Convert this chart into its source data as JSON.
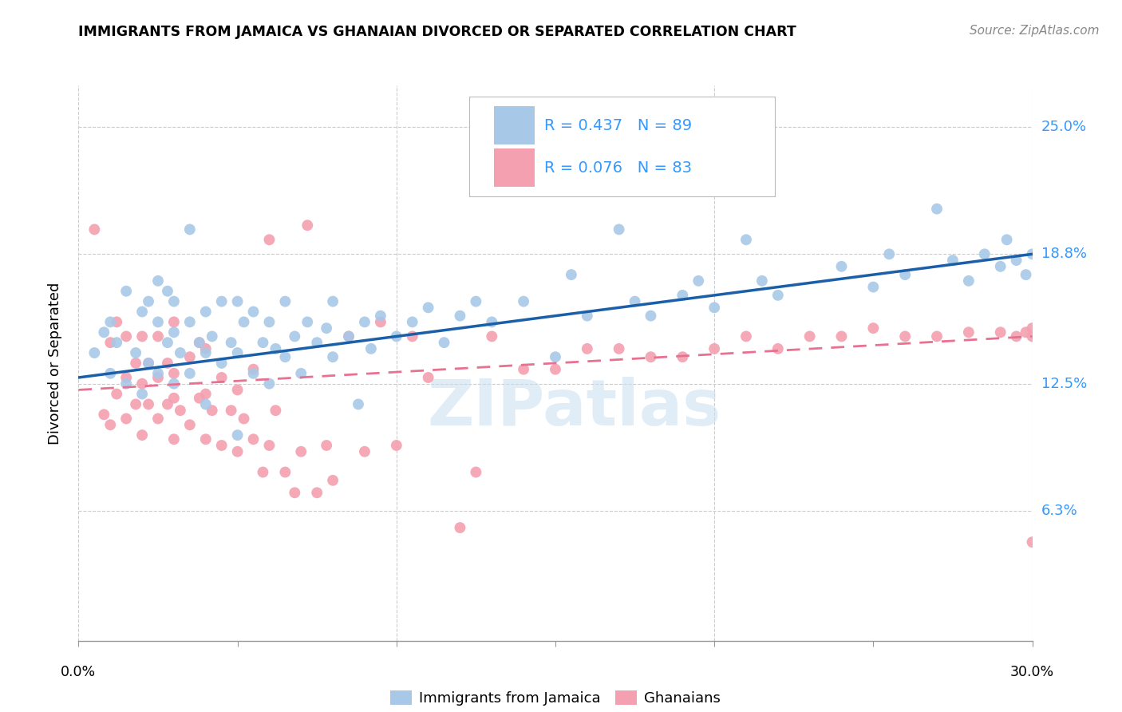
{
  "title": "IMMIGRANTS FROM JAMAICA VS GHANAIAN DIVORCED OR SEPARATED CORRELATION CHART",
  "source": "Source: ZipAtlas.com",
  "ylabel": "Divorced or Separated",
  "y_tick_labels": [
    "6.3%",
    "12.5%",
    "18.8%",
    "25.0%"
  ],
  "y_tick_values": [
    0.063,
    0.125,
    0.188,
    0.25
  ],
  "x_range": [
    0.0,
    0.3
  ],
  "y_range": [
    0.0,
    0.27
  ],
  "legend_label_bottom1": "Immigrants from Jamaica",
  "legend_label_bottom2": "Ghanaians",
  "blue_color": "#a8c8e8",
  "pink_color": "#f4a0b0",
  "line_blue": "#1a5fa8",
  "line_pink": "#e87090",
  "blue_line_start_y": 0.128,
  "blue_line_end_y": 0.188,
  "pink_line_start_y": 0.122,
  "pink_line_end_y": 0.148,
  "blue_scatter_x": [
    0.005,
    0.008,
    0.01,
    0.01,
    0.012,
    0.015,
    0.015,
    0.018,
    0.02,
    0.02,
    0.022,
    0.022,
    0.025,
    0.025,
    0.025,
    0.028,
    0.028,
    0.03,
    0.03,
    0.03,
    0.032,
    0.035,
    0.035,
    0.035,
    0.038,
    0.04,
    0.04,
    0.04,
    0.042,
    0.045,
    0.045,
    0.048,
    0.05,
    0.05,
    0.05,
    0.052,
    0.055,
    0.055,
    0.058,
    0.06,
    0.06,
    0.062,
    0.065,
    0.065,
    0.068,
    0.07,
    0.072,
    0.075,
    0.078,
    0.08,
    0.08,
    0.085,
    0.088,
    0.09,
    0.092,
    0.095,
    0.1,
    0.105,
    0.11,
    0.115,
    0.12,
    0.125,
    0.13,
    0.14,
    0.15,
    0.155,
    0.16,
    0.17,
    0.175,
    0.18,
    0.19,
    0.195,
    0.2,
    0.21,
    0.215,
    0.22,
    0.24,
    0.25,
    0.255,
    0.26,
    0.27,
    0.275,
    0.28,
    0.285,
    0.29,
    0.292,
    0.295,
    0.298,
    0.3
  ],
  "blue_scatter_y": [
    0.14,
    0.15,
    0.13,
    0.155,
    0.145,
    0.125,
    0.17,
    0.14,
    0.12,
    0.16,
    0.135,
    0.165,
    0.13,
    0.155,
    0.175,
    0.145,
    0.17,
    0.125,
    0.15,
    0.165,
    0.14,
    0.13,
    0.155,
    0.2,
    0.145,
    0.115,
    0.14,
    0.16,
    0.148,
    0.135,
    0.165,
    0.145,
    0.1,
    0.14,
    0.165,
    0.155,
    0.13,
    0.16,
    0.145,
    0.125,
    0.155,
    0.142,
    0.138,
    0.165,
    0.148,
    0.13,
    0.155,
    0.145,
    0.152,
    0.138,
    0.165,
    0.148,
    0.115,
    0.155,
    0.142,
    0.158,
    0.148,
    0.155,
    0.162,
    0.145,
    0.158,
    0.165,
    0.155,
    0.165,
    0.138,
    0.178,
    0.158,
    0.2,
    0.165,
    0.158,
    0.168,
    0.175,
    0.162,
    0.195,
    0.175,
    0.168,
    0.182,
    0.172,
    0.188,
    0.178,
    0.21,
    0.185,
    0.175,
    0.188,
    0.182,
    0.195,
    0.185,
    0.178,
    0.188
  ],
  "pink_scatter_x": [
    0.005,
    0.008,
    0.01,
    0.01,
    0.012,
    0.012,
    0.015,
    0.015,
    0.015,
    0.018,
    0.018,
    0.02,
    0.02,
    0.02,
    0.022,
    0.022,
    0.025,
    0.025,
    0.025,
    0.028,
    0.028,
    0.03,
    0.03,
    0.03,
    0.03,
    0.032,
    0.035,
    0.035,
    0.038,
    0.038,
    0.04,
    0.04,
    0.04,
    0.042,
    0.045,
    0.045,
    0.048,
    0.05,
    0.05,
    0.052,
    0.055,
    0.055,
    0.058,
    0.06,
    0.06,
    0.062,
    0.065,
    0.068,
    0.07,
    0.072,
    0.075,
    0.078,
    0.08,
    0.085,
    0.09,
    0.095,
    0.1,
    0.105,
    0.11,
    0.12,
    0.125,
    0.13,
    0.14,
    0.15,
    0.16,
    0.17,
    0.18,
    0.19,
    0.2,
    0.21,
    0.22,
    0.23,
    0.24,
    0.25,
    0.26,
    0.27,
    0.28,
    0.29,
    0.295,
    0.298,
    0.3,
    0.3,
    0.3
  ],
  "pink_scatter_y": [
    0.2,
    0.11,
    0.105,
    0.145,
    0.12,
    0.155,
    0.108,
    0.128,
    0.148,
    0.115,
    0.135,
    0.1,
    0.125,
    0.148,
    0.115,
    0.135,
    0.108,
    0.128,
    0.148,
    0.115,
    0.135,
    0.098,
    0.118,
    0.13,
    0.155,
    0.112,
    0.105,
    0.138,
    0.118,
    0.145,
    0.098,
    0.12,
    0.142,
    0.112,
    0.095,
    0.128,
    0.112,
    0.092,
    0.122,
    0.108,
    0.098,
    0.132,
    0.082,
    0.095,
    0.195,
    0.112,
    0.082,
    0.072,
    0.092,
    0.202,
    0.072,
    0.095,
    0.078,
    0.148,
    0.092,
    0.155,
    0.095,
    0.148,
    0.128,
    0.055,
    0.082,
    0.148,
    0.132,
    0.132,
    0.142,
    0.142,
    0.138,
    0.138,
    0.142,
    0.148,
    0.142,
    0.148,
    0.148,
    0.152,
    0.148,
    0.148,
    0.15,
    0.15,
    0.148,
    0.15,
    0.048,
    0.152,
    0.148
  ]
}
